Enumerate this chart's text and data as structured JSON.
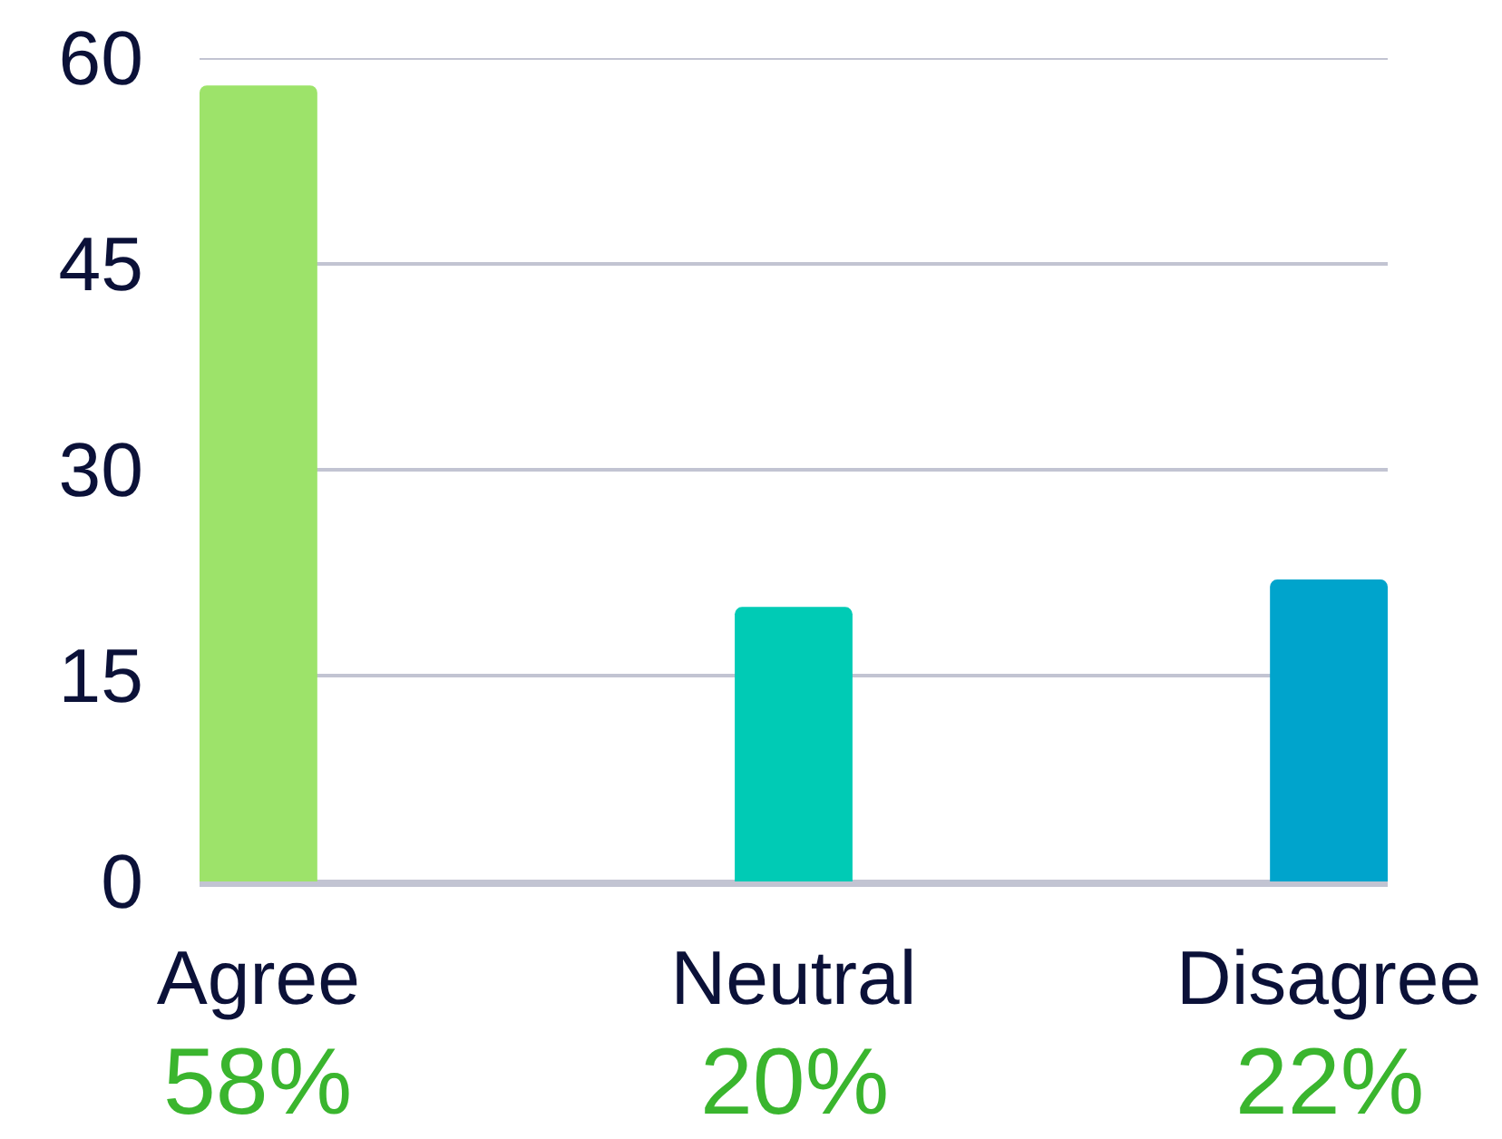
{
  "chart_data": {
    "type": "bar",
    "categories": [
      "Agree",
      "Neutral",
      "Disagree"
    ],
    "values": [
      58,
      20,
      22
    ],
    "colors": [
      "#9de36a",
      "#00cbb5",
      "#00a4cc"
    ],
    "value_labels": [
      "58%",
      "20%",
      "22%"
    ],
    "ylim": [
      0,
      60
    ],
    "yticks": [
      0,
      15,
      30,
      45,
      60
    ],
    "grid": "y"
  }
}
